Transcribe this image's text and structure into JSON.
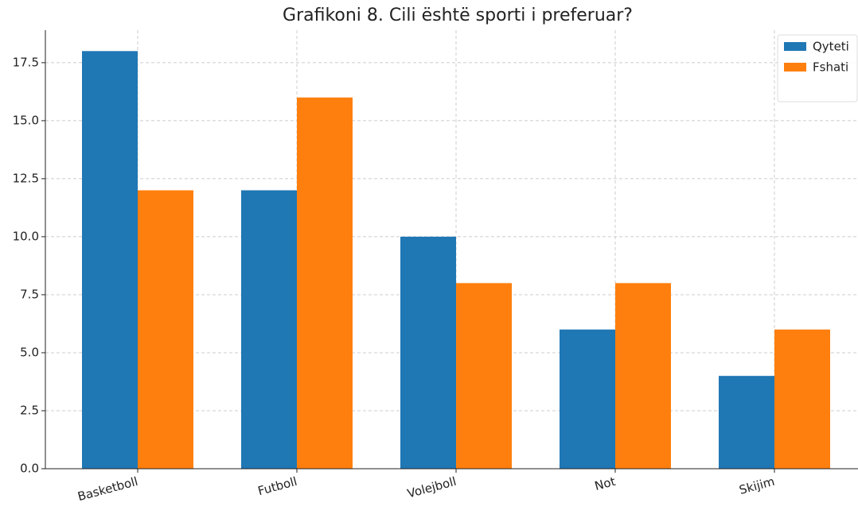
{
  "chart_data": {
    "type": "bar",
    "title": "Grafikoni 8. Cili është sporti i preferuar?",
    "categories": [
      "Basketboll",
      "Futboll",
      "Volejboll",
      "Not",
      "Skijim"
    ],
    "series": [
      {
        "name": "Qyteti",
        "color": "#1f77b4",
        "values": [
          18,
          12,
          10,
          6,
          4
        ]
      },
      {
        "name": "Fshati",
        "color": "#ff7f0e",
        "values": [
          12,
          16,
          8,
          8,
          6
        ]
      }
    ],
    "ylim": [
      0,
      18.9
    ],
    "yticks": [
      {
        "value": 0,
        "label": "0.0"
      },
      2.5,
      {
        "value": 5,
        "label": "5.0"
      },
      7.5,
      {
        "value": 10,
        "label": "10.0"
      },
      12.5,
      {
        "value": 15,
        "label": "15.0"
      },
      17.5
    ],
    "grid": true,
    "legend": "upper right"
  }
}
